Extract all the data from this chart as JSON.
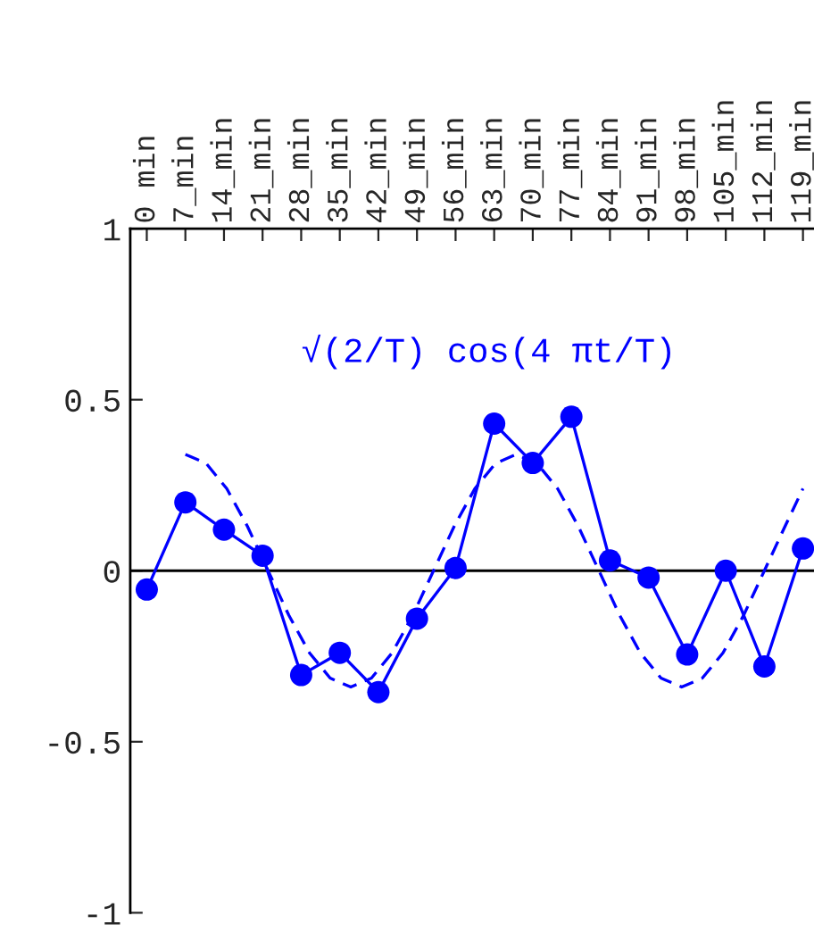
{
  "chart_data": {
    "type": "line",
    "annotations": [
      "√(2/T) cos(4 πt/T)"
    ],
    "xlim": [
      -3,
      121
    ],
    "xticks": [
      {
        "value": 0,
        "label": "0 min"
      },
      {
        "value": 7,
        "label": "7_min"
      },
      {
        "value": 14,
        "label": "14_min"
      },
      {
        "value": 21,
        "label": "21_min"
      },
      {
        "value": 28,
        "label": "28_min"
      },
      {
        "value": 35,
        "label": "35_min"
      },
      {
        "value": 42,
        "label": "42_min"
      },
      {
        "value": 49,
        "label": "49_min"
      },
      {
        "value": 56,
        "label": "56_min"
      },
      {
        "value": 63,
        "label": "63_min"
      },
      {
        "value": 70,
        "label": "70_min"
      },
      {
        "value": 77,
        "label": "77_min"
      },
      {
        "value": 84,
        "label": "84_min"
      },
      {
        "value": 91,
        "label": "91_min"
      },
      {
        "value": 98,
        "label": "98_min"
      },
      {
        "value": 105,
        "label": "105_min"
      },
      {
        "value": 112,
        "label": "112_min"
      },
      {
        "value": 119,
        "label": "119_min"
      }
    ],
    "ylim": [
      -1,
      1
    ],
    "yticks": [
      {
        "value": -1,
        "label": "-1"
      },
      {
        "value": -0.5,
        "label": "-0.5"
      },
      0,
      0.5,
      1
    ],
    "grid": false,
    "ref_lines": [
      {
        "axis": "y",
        "value": 0,
        "color": "#000000",
        "line_style": "solid"
      }
    ],
    "series": [
      {
        "color": "#0000ff",
        "marker": "circle",
        "line_style": "solid",
        "x": [
          0,
          7,
          14,
          21,
          28,
          35,
          42,
          49,
          56,
          63,
          70,
          77,
          84,
          91,
          98,
          105,
          112,
          119
        ],
        "values": [
          -0.055,
          0.2,
          0.12,
          0.044,
          -0.305,
          -0.24,
          -0.355,
          -0.14,
          0.008,
          0.43,
          0.315,
          0.45,
          0.03,
          -0.02,
          -0.245,
          0.0,
          -0.28,
          0.065
        ]
      },
      {
        "color": "#0000ff",
        "marker": "none",
        "line_style": "dashed",
        "x": [
          7,
          10.75,
          14.5,
          18.25,
          22,
          25.75,
          29.5,
          33.25,
          37,
          40.75,
          44.5,
          48.25,
          52,
          55.75,
          59.5,
          63.25,
          67,
          70.75,
          74.5,
          78.25,
          82,
          85.75,
          89.5,
          93.25,
          97,
          100.75,
          104.5,
          108.25,
          112,
          115.75,
          119
        ],
        "values": [
          0.34,
          0.314,
          0.24,
          0.13,
          0,
          -0.13,
          -0.24,
          -0.314,
          -0.34,
          -0.314,
          -0.24,
          -0.13,
          0,
          0.13,
          0.24,
          0.314,
          0.34,
          0.314,
          0.24,
          0.13,
          0,
          -0.13,
          -0.24,
          -0.314,
          -0.34,
          -0.314,
          -0.24,
          -0.13,
          0,
          0.13,
          0.24
        ]
      }
    ]
  }
}
